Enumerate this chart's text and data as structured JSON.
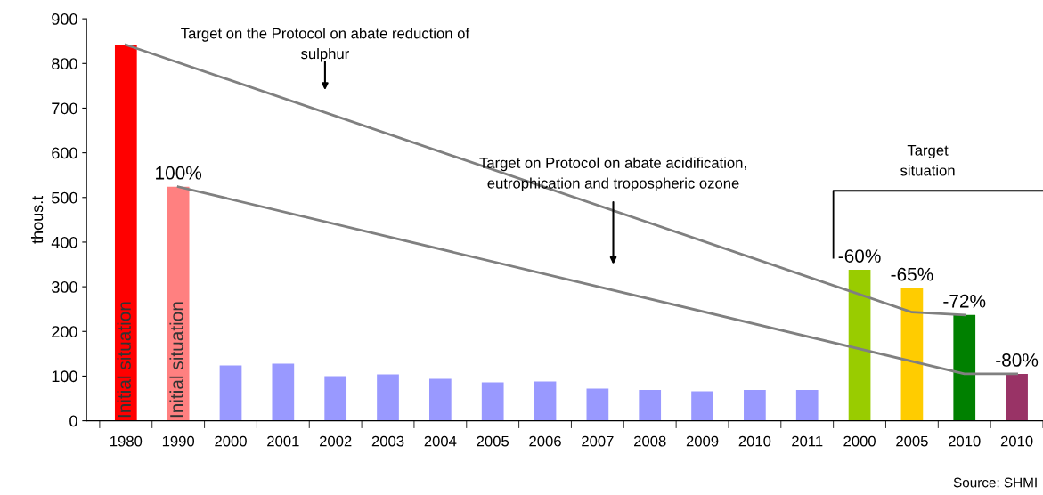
{
  "chart_data": {
    "type": "bar",
    "ylabel": "thous.t",
    "categories": [
      "1980",
      "1990",
      "2000",
      "2001",
      "2002",
      "2003",
      "2004",
      "2005",
      "2006",
      "2007",
      "2008",
      "2009",
      "2010",
      "2011",
      "2000",
      "2005",
      "2010",
      "2010"
    ],
    "values": [
      842,
      524,
      124,
      128,
      100,
      104,
      94,
      86,
      88,
      72,
      69,
      66,
      69,
      69,
      338,
      297,
      237,
      105
    ],
    "colors": [
      "#ff0000",
      "#ff8080",
      "#9999ff",
      "#9999ff",
      "#9999ff",
      "#9999ff",
      "#9999ff",
      "#9999ff",
      "#9999ff",
      "#9999ff",
      "#9999ff",
      "#9999ff",
      "#9999ff",
      "#9999ff",
      "#99cc00",
      "#ffcc00",
      "#008000",
      "#993366"
    ],
    "series": [
      {
        "type": "line",
        "color": "#808080",
        "values": [
          842,
          null,
          null,
          null,
          null,
          null,
          null,
          null,
          null,
          null,
          null,
          null,
          null,
          null,
          null,
          243,
          237,
          null
        ]
      },
      {
        "type": "line",
        "color": "#808080",
        "values": [
          null,
          524,
          null,
          null,
          null,
          null,
          null,
          null,
          null,
          null,
          null,
          null,
          null,
          null,
          null,
          null,
          105,
          105
        ]
      }
    ],
    "annotations": [
      "Target on the Protocol on abate reduction of\nsulphur",
      "Target on Protocol on abate acidification,\neutrophication and tropospheric ozone",
      "Target\nsituation",
      "Source: SHMI",
      "100%",
      "-60%",
      "-65%",
      "-72%",
      "-80%",
      {
        "text": "Initial situation",
        "x": "1980",
        "y": 0
      },
      {
        "text": "Initial situation",
        "x": "1990",
        "y": 0
      }
    ],
    "ylim": [
      0,
      900
    ],
    "yticks": [
      0,
      100,
      200,
      300,
      400,
      500,
      600,
      700,
      800,
      900
    ],
    "grid": false,
    "legend": false
  }
}
